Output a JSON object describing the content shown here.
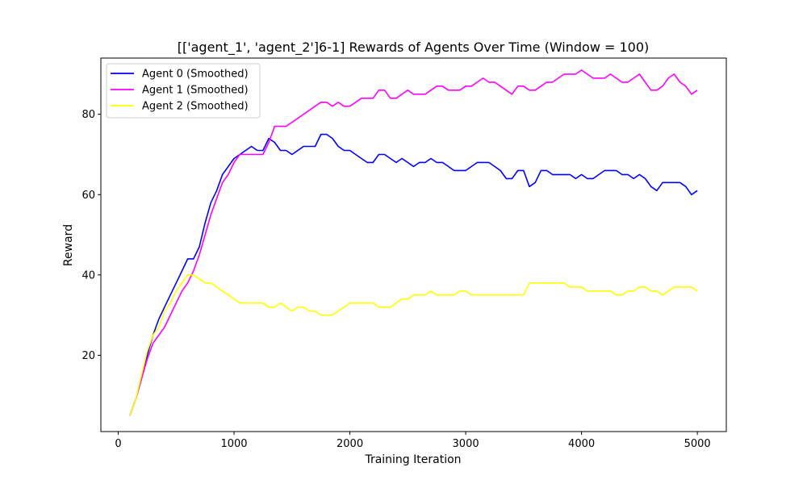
{
  "chart_data": {
    "type": "line",
    "title": "[['agent_1', 'agent_2']6-1] Rewards of Agents Over Time (Window = 100)",
    "xlabel": "Training Iteration",
    "ylabel": "Reward",
    "xlim": [
      -150,
      5250
    ],
    "ylim": [
      1,
      94
    ],
    "xticks": [
      0,
      1000,
      2000,
      3000,
      4000,
      5000
    ],
    "yticks": [
      20,
      40,
      60,
      80
    ],
    "grid": false,
    "legend_position": "top-left",
    "series": [
      {
        "name": "Agent 0 (Smoothed)",
        "color": "#0000ff",
        "points": [
          [
            100,
            5
          ],
          [
            150,
            9
          ],
          [
            200,
            14
          ],
          [
            250,
            20
          ],
          [
            300,
            25
          ],
          [
            350,
            29
          ],
          [
            400,
            32
          ],
          [
            450,
            35
          ],
          [
            500,
            38
          ],
          [
            550,
            41
          ],
          [
            600,
            44
          ],
          [
            650,
            44
          ],
          [
            700,
            47
          ],
          [
            750,
            53
          ],
          [
            800,
            58
          ],
          [
            850,
            61
          ],
          [
            900,
            65
          ],
          [
            950,
            67
          ],
          [
            1000,
            69
          ],
          [
            1050,
            70
          ],
          [
            1100,
            71
          ],
          [
            1150,
            72
          ],
          [
            1200,
            71
          ],
          [
            1250,
            71
          ],
          [
            1300,
            74
          ],
          [
            1350,
            73
          ],
          [
            1400,
            71
          ],
          [
            1450,
            71
          ],
          [
            1500,
            70
          ],
          [
            1550,
            71
          ],
          [
            1600,
            72
          ],
          [
            1650,
            72
          ],
          [
            1700,
            72
          ],
          [
            1750,
            75
          ],
          [
            1800,
            75
          ],
          [
            1850,
            74
          ],
          [
            1900,
            72
          ],
          [
            1950,
            71
          ],
          [
            2000,
            71
          ],
          [
            2050,
            70
          ],
          [
            2100,
            69
          ],
          [
            2150,
            68
          ],
          [
            2200,
            68
          ],
          [
            2250,
            70
          ],
          [
            2300,
            70
          ],
          [
            2350,
            69
          ],
          [
            2400,
            68
          ],
          [
            2450,
            69
          ],
          [
            2500,
            68
          ],
          [
            2550,
            67
          ],
          [
            2600,
            68
          ],
          [
            2650,
            68
          ],
          [
            2700,
            69
          ],
          [
            2750,
            68
          ],
          [
            2800,
            68
          ],
          [
            2850,
            67
          ],
          [
            2900,
            66
          ],
          [
            2950,
            66
          ],
          [
            3000,
            66
          ],
          [
            3050,
            67
          ],
          [
            3100,
            68
          ],
          [
            3150,
            68
          ],
          [
            3200,
            68
          ],
          [
            3250,
            67
          ],
          [
            3300,
            66
          ],
          [
            3350,
            64
          ],
          [
            3400,
            64
          ],
          [
            3450,
            66
          ],
          [
            3500,
            66
          ],
          [
            3550,
            62
          ],
          [
            3600,
            63
          ],
          [
            3650,
            66
          ],
          [
            3700,
            66
          ],
          [
            3750,
            65
          ],
          [
            3800,
            65
          ],
          [
            3850,
            65
          ],
          [
            3900,
            65
          ],
          [
            3950,
            64
          ],
          [
            4000,
            65
          ],
          [
            4050,
            64
          ],
          [
            4100,
            64
          ],
          [
            4150,
            65
          ],
          [
            4200,
            66
          ],
          [
            4250,
            66
          ],
          [
            4300,
            66
          ],
          [
            4350,
            65
          ],
          [
            4400,
            65
          ],
          [
            4450,
            64
          ],
          [
            4500,
            65
          ],
          [
            4550,
            64
          ],
          [
            4600,
            62
          ],
          [
            4650,
            61
          ],
          [
            4700,
            63
          ],
          [
            4750,
            63
          ],
          [
            4800,
            63
          ],
          [
            4850,
            63
          ],
          [
            4900,
            62
          ],
          [
            4950,
            60
          ],
          [
            5000,
            61
          ]
        ]
      },
      {
        "name": "Agent 1 (Smoothed)",
        "color": "#ff00ff",
        "points": [
          [
            100,
            5
          ],
          [
            150,
            9
          ],
          [
            200,
            14
          ],
          [
            250,
            19
          ],
          [
            300,
            23
          ],
          [
            350,
            25
          ],
          [
            400,
            27
          ],
          [
            450,
            30
          ],
          [
            500,
            33
          ],
          [
            550,
            36
          ],
          [
            600,
            38
          ],
          [
            650,
            41
          ],
          [
            700,
            45
          ],
          [
            750,
            50
          ],
          [
            800,
            55
          ],
          [
            850,
            59
          ],
          [
            900,
            63
          ],
          [
            950,
            65
          ],
          [
            1000,
            68
          ],
          [
            1050,
            70
          ],
          [
            1100,
            70
          ],
          [
            1150,
            70
          ],
          [
            1200,
            70
          ],
          [
            1250,
            70
          ],
          [
            1300,
            73
          ],
          [
            1350,
            77
          ],
          [
            1400,
            77
          ],
          [
            1450,
            77
          ],
          [
            1500,
            78
          ],
          [
            1550,
            79
          ],
          [
            1600,
            80
          ],
          [
            1650,
            81
          ],
          [
            1700,
            82
          ],
          [
            1750,
            83
          ],
          [
            1800,
            83
          ],
          [
            1850,
            82
          ],
          [
            1900,
            83
          ],
          [
            1950,
            82
          ],
          [
            2000,
            82
          ],
          [
            2050,
            83
          ],
          [
            2100,
            84
          ],
          [
            2150,
            84
          ],
          [
            2200,
            84
          ],
          [
            2250,
            86
          ],
          [
            2300,
            86
          ],
          [
            2350,
            84
          ],
          [
            2400,
            84
          ],
          [
            2450,
            85
          ],
          [
            2500,
            86
          ],
          [
            2550,
            85
          ],
          [
            2600,
            85
          ],
          [
            2650,
            85
          ],
          [
            2700,
            86
          ],
          [
            2750,
            87
          ],
          [
            2800,
            87
          ],
          [
            2850,
            86
          ],
          [
            2900,
            86
          ],
          [
            2950,
            86
          ],
          [
            3000,
            87
          ],
          [
            3050,
            87
          ],
          [
            3100,
            88
          ],
          [
            3150,
            89
          ],
          [
            3200,
            88
          ],
          [
            3250,
            88
          ],
          [
            3300,
            87
          ],
          [
            3350,
            86
          ],
          [
            3400,
            85
          ],
          [
            3450,
            87
          ],
          [
            3500,
            87
          ],
          [
            3550,
            86
          ],
          [
            3600,
            86
          ],
          [
            3650,
            87
          ],
          [
            3700,
            88
          ],
          [
            3750,
            88
          ],
          [
            3800,
            89
          ],
          [
            3850,
            90
          ],
          [
            3900,
            90
          ],
          [
            3950,
            90
          ],
          [
            4000,
            91
          ],
          [
            4050,
            90
          ],
          [
            4100,
            89
          ],
          [
            4150,
            89
          ],
          [
            4200,
            89
          ],
          [
            4250,
            90
          ],
          [
            4300,
            89
          ],
          [
            4350,
            88
          ],
          [
            4400,
            88
          ],
          [
            4450,
            89
          ],
          [
            4500,
            90
          ],
          [
            4550,
            88
          ],
          [
            4600,
            86
          ],
          [
            4650,
            86
          ],
          [
            4700,
            87
          ],
          [
            4750,
            89
          ],
          [
            4800,
            90
          ],
          [
            4850,
            88
          ],
          [
            4900,
            87
          ],
          [
            4950,
            85
          ],
          [
            5000,
            86
          ]
        ]
      },
      {
        "name": "Agent 2 (Smoothed)",
        "color": "#ffff00",
        "points": [
          [
            100,
            5
          ],
          [
            150,
            9
          ],
          [
            200,
            15
          ],
          [
            250,
            21
          ],
          [
            300,
            25
          ],
          [
            350,
            27
          ],
          [
            400,
            31
          ],
          [
            450,
            33
          ],
          [
            500,
            36
          ],
          [
            550,
            38
          ],
          [
            600,
            40
          ],
          [
            650,
            40
          ],
          [
            700,
            39
          ],
          [
            750,
            38
          ],
          [
            800,
            38
          ],
          [
            850,
            37
          ],
          [
            900,
            36
          ],
          [
            950,
            35
          ],
          [
            1000,
            34
          ],
          [
            1050,
            33
          ],
          [
            1100,
            33
          ],
          [
            1150,
            33
          ],
          [
            1200,
            33
          ],
          [
            1250,
            33
          ],
          [
            1300,
            32
          ],
          [
            1350,
            32
          ],
          [
            1400,
            33
          ],
          [
            1450,
            32
          ],
          [
            1500,
            31
          ],
          [
            1550,
            32
          ],
          [
            1600,
            32
          ],
          [
            1650,
            31
          ],
          [
            1700,
            31
          ],
          [
            1750,
            30
          ],
          [
            1800,
            30
          ],
          [
            1850,
            30
          ],
          [
            1900,
            31
          ],
          [
            1950,
            32
          ],
          [
            2000,
            33
          ],
          [
            2050,
            33
          ],
          [
            2100,
            33
          ],
          [
            2150,
            33
          ],
          [
            2200,
            33
          ],
          [
            2250,
            32
          ],
          [
            2300,
            32
          ],
          [
            2350,
            32
          ],
          [
            2400,
            33
          ],
          [
            2450,
            34
          ],
          [
            2500,
            34
          ],
          [
            2550,
            35
          ],
          [
            2600,
            35
          ],
          [
            2650,
            35
          ],
          [
            2700,
            36
          ],
          [
            2750,
            35
          ],
          [
            2800,
            35
          ],
          [
            2850,
            35
          ],
          [
            2900,
            35
          ],
          [
            2950,
            36
          ],
          [
            3000,
            36
          ],
          [
            3050,
            35
          ],
          [
            3100,
            35
          ],
          [
            3150,
            35
          ],
          [
            3200,
            35
          ],
          [
            3250,
            35
          ],
          [
            3300,
            35
          ],
          [
            3350,
            35
          ],
          [
            3400,
            35
          ],
          [
            3450,
            35
          ],
          [
            3500,
            35
          ],
          [
            3550,
            38
          ],
          [
            3600,
            38
          ],
          [
            3650,
            38
          ],
          [
            3700,
            38
          ],
          [
            3750,
            38
          ],
          [
            3800,
            38
          ],
          [
            3850,
            38
          ],
          [
            3900,
            37
          ],
          [
            3950,
            37
          ],
          [
            4000,
            37
          ],
          [
            4050,
            36
          ],
          [
            4100,
            36
          ],
          [
            4150,
            36
          ],
          [
            4200,
            36
          ],
          [
            4250,
            36
          ],
          [
            4300,
            35
          ],
          [
            4350,
            35
          ],
          [
            4400,
            36
          ],
          [
            4450,
            36
          ],
          [
            4500,
            37
          ],
          [
            4550,
            37
          ],
          [
            4600,
            36
          ],
          [
            4650,
            36
          ],
          [
            4700,
            35
          ],
          [
            4750,
            36
          ],
          [
            4800,
            37
          ],
          [
            4850,
            37
          ],
          [
            4900,
            37
          ],
          [
            4950,
            37
          ],
          [
            5000,
            36
          ]
        ]
      }
    ]
  }
}
